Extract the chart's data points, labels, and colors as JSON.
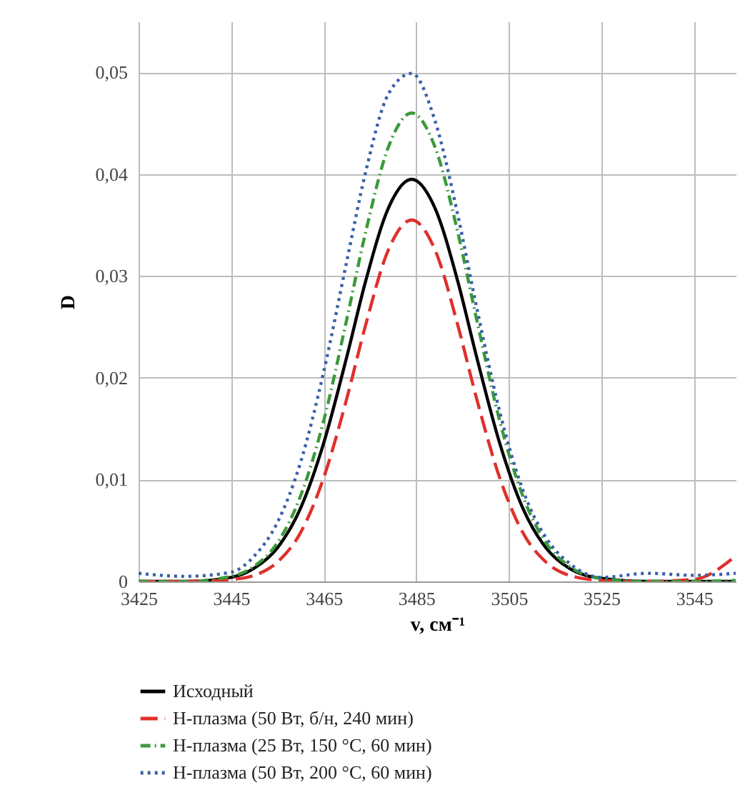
{
  "chart_data": {
    "type": "line",
    "xlabel": "v, см⁻¹",
    "ylabel": "D",
    "x": [
      3425,
      3435,
      3445,
      3450,
      3455,
      3460,
      3465,
      3470,
      3474,
      3479,
      3484,
      3489,
      3494,
      3498,
      3503,
      3508,
      3513,
      3518,
      3525,
      3535,
      3545,
      3554
    ],
    "series": [
      {
        "name": "Исходный",
        "color": "#000000",
        "line_style": "solid",
        "values": [
          0,
          0,
          0.0004,
          0.0013,
          0.0033,
          0.0072,
          0.0136,
          0.0221,
          0.0294,
          0.0367,
          0.0395,
          0.0367,
          0.0294,
          0.0221,
          0.0136,
          0.0072,
          0.0033,
          0.0013,
          0.0003,
          0,
          0,
          0
        ]
      },
      {
        "name": "Н-плазма (50 Вт, б/н, 240 мин)",
        "color": "#e0302a",
        "line_style": "dashed",
        "values": [
          0,
          0,
          0.0002,
          0.0006,
          0.0019,
          0.0048,
          0.0102,
          0.018,
          0.0251,
          0.0326,
          0.0355,
          0.0326,
          0.0251,
          0.018,
          0.0102,
          0.0048,
          0.0019,
          0.0006,
          0.0001,
          0,
          0.0002,
          0.0025
        ]
      },
      {
        "name": "Н-плазма (25 Вт, 150 °С, 60 мин)",
        "color": "#3a9a3a",
        "line_style": "dashdot",
        "values": [
          0,
          0,
          0.0005,
          0.0015,
          0.0038,
          0.0084,
          0.0158,
          0.0258,
          0.0342,
          0.0427,
          0.046,
          0.0427,
          0.0342,
          0.0258,
          0.0158,
          0.0084,
          0.0038,
          0.0015,
          0.0003,
          0,
          0,
          0.0001
        ]
      },
      {
        "name": "Н-плазма (50 Вт, 200 °С, 60 мин)",
        "color": "#3a60a8",
        "line_style": "dotted",
        "values": [
          0.0008,
          0.0005,
          0.0009,
          0.0025,
          0.0058,
          0.0117,
          0.0206,
          0.0315,
          0.0401,
          0.0479,
          0.0499,
          0.0453,
          0.0359,
          0.027,
          0.0167,
          0.009,
          0.0043,
          0.0018,
          0.0004,
          0.0008,
          0.0006,
          0.0008
        ]
      }
    ],
    "xlim": [
      3425,
      3554
    ],
    "xticks": [
      3425,
      3445,
      3465,
      3485,
      3505,
      3525,
      3545
    ],
    "ylim": [
      0,
      0.055
    ],
    "yticks": [
      {
        "value": 0,
        "label": "0"
      },
      {
        "value": 0.01,
        "label": "0,01"
      },
      {
        "value": 0.02,
        "label": "0,02"
      },
      {
        "value": 0.03,
        "label": "0,03"
      },
      {
        "value": 0.04,
        "label": "0,04"
      },
      {
        "value": 0.05,
        "label": "0,05"
      }
    ],
    "grid": true,
    "legend": "bottom"
  }
}
